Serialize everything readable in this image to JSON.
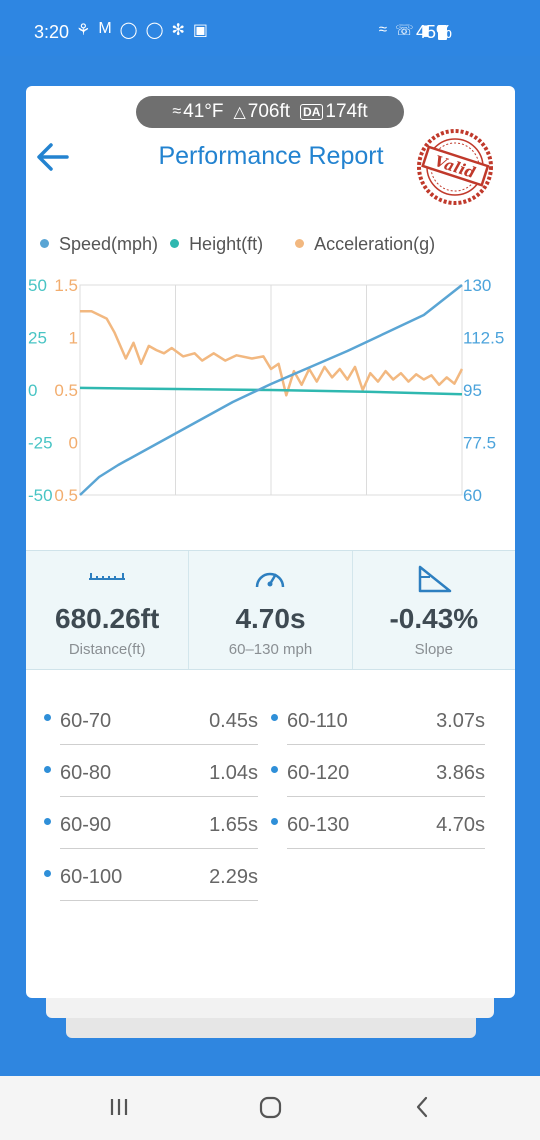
{
  "status_bar": {
    "time": "3:20",
    "notification_icons": [
      "lock-person-icon",
      "gmail-icon",
      "shazam-icon",
      "messenger-icon",
      "pinwheel-icon",
      "gallery-icon"
    ],
    "system_icons": [
      "bluetooth-icon",
      "wifi-calling-icon",
      "signal-icon"
    ],
    "battery": "45%"
  },
  "weather": {
    "temperature": "41°F",
    "elevation": "706ft",
    "da_label": "DA",
    "density_altitude": "174ft"
  },
  "header": {
    "title": "Performance Report",
    "stamp": "Valid"
  },
  "legend": {
    "speed": "Speed(mph)",
    "height": "Height(ft)",
    "acceleration": "Acceleration(g)"
  },
  "chart_data": {
    "type": "line",
    "left_axis_1": {
      "ticks": [
        "50",
        "25",
        "0",
        "-25",
        "-50"
      ],
      "range": [
        -50,
        50
      ],
      "color": "#48c4c4"
    },
    "left_axis_2": {
      "ticks": [
        "1.5",
        "1",
        "0.5",
        "0",
        "0.5"
      ],
      "range": [
        -0.5,
        1.5
      ],
      "color": "#f2ad6e"
    },
    "right_axis": {
      "ticks": [
        "130",
        "112.5",
        "95",
        "77.5",
        "60"
      ],
      "range": [
        60,
        130
      ],
      "color": "#4ba3db"
    },
    "series": [
      {
        "name": "Speed(mph)",
        "color": "#5aa5d4",
        "x": [
          0,
          0.05,
          0.1,
          0.2,
          0.3,
          0.4,
          0.5,
          0.6,
          0.7,
          0.8,
          0.9,
          1.0
        ],
        "values": [
          60,
          66,
          70,
          77,
          84,
          91,
          97,
          102.5,
          108,
          114,
          120,
          130
        ]
      },
      {
        "name": "Height(ft)",
        "color": "#2fb8b0",
        "x": [
          0,
          0.25,
          0.5,
          0.75,
          1.0
        ],
        "values": [
          1,
          0.5,
          0,
          -0.8,
          -2
        ]
      },
      {
        "name": "Acceleration(g)",
        "color": "#f2b880",
        "x": [
          0,
          0.03,
          0.07,
          0.09,
          0.12,
          0.14,
          0.16,
          0.18,
          0.2,
          0.22,
          0.24,
          0.27,
          0.3,
          0.32,
          0.35,
          0.38,
          0.41,
          0.45,
          0.48,
          0.5,
          0.52,
          0.54,
          0.56,
          0.58,
          0.6,
          0.62,
          0.64,
          0.66,
          0.68,
          0.7,
          0.72,
          0.74,
          0.76,
          0.78,
          0.8,
          0.82,
          0.84,
          0.86,
          0.88,
          0.9,
          0.92,
          0.94,
          0.96,
          0.98,
          1.0
        ],
        "values": [
          1.25,
          1.25,
          1.18,
          1.05,
          0.8,
          0.95,
          0.75,
          0.92,
          0.88,
          0.85,
          0.9,
          0.82,
          0.85,
          0.78,
          0.85,
          0.78,
          0.83,
          0.8,
          0.82,
          0.7,
          0.75,
          0.45,
          0.68,
          0.55,
          0.7,
          0.58,
          0.72,
          0.62,
          0.7,
          0.6,
          0.72,
          0.5,
          0.66,
          0.58,
          0.68,
          0.6,
          0.66,
          0.58,
          0.65,
          0.6,
          0.64,
          0.55,
          0.62,
          0.56,
          0.7
        ]
      }
    ],
    "grid": true
  },
  "stats": [
    {
      "icon": "ruler-icon",
      "value": "680.26ft",
      "label": "Distance(ft)"
    },
    {
      "icon": "speedometer-icon",
      "value": "4.70s",
      "label": "60–130 mph"
    },
    {
      "icon": "slope-icon",
      "value": "-0.43%",
      "label": "Slope"
    }
  ],
  "splits": [
    {
      "range": "60-70",
      "time": "0.45s"
    },
    {
      "range": "60-110",
      "time": "3.07s"
    },
    {
      "range": "60-80",
      "time": "1.04s"
    },
    {
      "range": "60-120",
      "time": "3.86s"
    },
    {
      "range": "60-90",
      "time": "1.65s"
    },
    {
      "range": "60-130",
      "time": "4.70s"
    },
    {
      "range": "60-100",
      "time": "2.29s"
    }
  ],
  "nav": [
    "recent-apps-icon",
    "home-icon",
    "back-icon"
  ]
}
